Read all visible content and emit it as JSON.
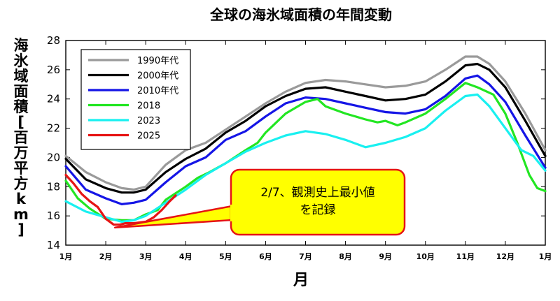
{
  "chart_data": {
    "type": "line",
    "title": "全球の海氷域面積の年間変動",
    "xlabel": "月",
    "ylabel": "海氷域面積[百万平方km]",
    "ylim": [
      14,
      28
    ],
    "yticks": [
      "14",
      "16",
      "18",
      "20",
      "22",
      "24",
      "26",
      "28"
    ],
    "xlim": [
      1,
      13
    ],
    "xtick_labels": [
      "1月",
      "2月",
      "3月",
      "4月",
      "5月",
      "6月",
      "7月",
      "8月",
      "9月",
      "10月",
      "11月",
      "12月",
      "1月"
    ],
    "legend_position": "top-left",
    "series": [
      {
        "name": "1990年代",
        "color": "#9a9a9a",
        "points": [
          [
            1,
            20.1
          ],
          [
            1.5,
            19.0
          ],
          [
            2,
            18.3
          ],
          [
            2.4,
            17.9
          ],
          [
            2.7,
            17.8
          ],
          [
            3,
            18.0
          ],
          [
            3.5,
            19.5
          ],
          [
            4,
            20.5
          ],
          [
            4.5,
            21.0
          ],
          [
            5,
            21.9
          ],
          [
            5.5,
            22.8
          ],
          [
            6,
            23.7
          ],
          [
            6.5,
            24.5
          ],
          [
            7,
            25.1
          ],
          [
            7.5,
            25.3
          ],
          [
            8,
            25.2
          ],
          [
            8.5,
            25.0
          ],
          [
            9,
            24.8
          ],
          [
            9.5,
            24.9
          ],
          [
            10,
            25.2
          ],
          [
            10.5,
            26.0
          ],
          [
            11,
            26.9
          ],
          [
            11.3,
            26.9
          ],
          [
            11.6,
            26.4
          ],
          [
            12,
            25.2
          ],
          [
            12.5,
            23.0
          ],
          [
            13,
            20.5
          ]
        ]
      },
      {
        "name": "2000年代",
        "color": "#000000",
        "points": [
          [
            1,
            19.9
          ],
          [
            1.5,
            18.5
          ],
          [
            2,
            17.9
          ],
          [
            2.4,
            17.6
          ],
          [
            2.7,
            17.6
          ],
          [
            3,
            17.8
          ],
          [
            3.5,
            19.0
          ],
          [
            4,
            19.9
          ],
          [
            4.5,
            20.6
          ],
          [
            5,
            21.7
          ],
          [
            5.5,
            22.5
          ],
          [
            6,
            23.5
          ],
          [
            6.5,
            24.2
          ],
          [
            7,
            24.7
          ],
          [
            7.5,
            24.8
          ],
          [
            8,
            24.5
          ],
          [
            8.5,
            24.2
          ],
          [
            9,
            23.9
          ],
          [
            9.5,
            24.0
          ],
          [
            10,
            24.3
          ],
          [
            10.5,
            25.2
          ],
          [
            11,
            26.3
          ],
          [
            11.3,
            26.4
          ],
          [
            11.6,
            26.0
          ],
          [
            12,
            24.8
          ],
          [
            12.5,
            22.5
          ],
          [
            13,
            20.1
          ]
        ]
      },
      {
        "name": "2010年代",
        "color": "#1515e6",
        "points": [
          [
            1,
            19.4
          ],
          [
            1.5,
            17.8
          ],
          [
            2,
            17.2
          ],
          [
            2.4,
            16.8
          ],
          [
            2.7,
            16.9
          ],
          [
            3,
            17.1
          ],
          [
            3.5,
            18.3
          ],
          [
            4,
            19.4
          ],
          [
            4.5,
            20.0
          ],
          [
            5,
            21.2
          ],
          [
            5.5,
            21.8
          ],
          [
            6,
            22.8
          ],
          [
            6.5,
            23.7
          ],
          [
            7,
            24.1
          ],
          [
            7.5,
            24.0
          ],
          [
            8,
            23.7
          ],
          [
            8.5,
            23.4
          ],
          [
            9,
            23.1
          ],
          [
            9.5,
            23.0
          ],
          [
            10,
            23.3
          ],
          [
            10.5,
            24.2
          ],
          [
            11,
            25.4
          ],
          [
            11.3,
            25.6
          ],
          [
            11.6,
            25.0
          ],
          [
            12,
            23.8
          ],
          [
            12.5,
            21.5
          ],
          [
            13,
            19.3
          ]
        ]
      },
      {
        "name": "2018",
        "color": "#22e622",
        "points": [
          [
            1,
            18.4
          ],
          [
            1.3,
            17.2
          ],
          [
            1.6,
            16.5
          ],
          [
            2,
            15.8
          ],
          [
            2.4,
            15.7
          ],
          [
            2.7,
            15.7
          ],
          [
            3,
            16.1
          ],
          [
            3.3,
            16.4
          ],
          [
            3.5,
            17.1
          ],
          [
            4,
            18.0
          ],
          [
            4.3,
            18.6
          ],
          [
            4.6,
            19.0
          ],
          [
            5,
            19.6
          ],
          [
            5.5,
            20.5
          ],
          [
            5.8,
            21.0
          ],
          [
            6,
            21.7
          ],
          [
            6.5,
            23.0
          ],
          [
            7,
            23.8
          ],
          [
            7.3,
            24.0
          ],
          [
            7.5,
            23.5
          ],
          [
            8,
            23.0
          ],
          [
            8.5,
            22.6
          ],
          [
            8.8,
            22.4
          ],
          [
            9,
            22.5
          ],
          [
            9.3,
            22.2
          ],
          [
            9.5,
            22.4
          ],
          [
            10,
            23.0
          ],
          [
            10.5,
            24.0
          ],
          [
            11,
            25.1
          ],
          [
            11.3,
            24.8
          ],
          [
            11.7,
            24.3
          ],
          [
            12,
            23.0
          ],
          [
            12.3,
            21.0
          ],
          [
            12.6,
            18.8
          ],
          [
            12.8,
            17.9
          ],
          [
            13,
            17.7
          ]
        ]
      },
      {
        "name": "2023",
        "color": "#19f0f0",
        "points": [
          [
            1,
            17.0
          ],
          [
            1.5,
            16.3
          ],
          [
            2,
            15.9
          ],
          [
            2.4,
            15.6
          ],
          [
            2.7,
            15.7
          ],
          [
            3,
            16.0
          ],
          [
            3.5,
            16.9
          ],
          [
            4,
            17.8
          ],
          [
            4.5,
            18.8
          ],
          [
            5,
            19.6
          ],
          [
            5.5,
            20.4
          ],
          [
            6,
            21.0
          ],
          [
            6.5,
            21.5
          ],
          [
            7,
            21.8
          ],
          [
            7.5,
            21.6
          ],
          [
            8,
            21.2
          ],
          [
            8.5,
            20.7
          ],
          [
            9,
            21.0
          ],
          [
            9.5,
            21.4
          ],
          [
            10,
            22.0
          ],
          [
            10.5,
            23.2
          ],
          [
            11,
            24.2
          ],
          [
            11.3,
            24.3
          ],
          [
            11.6,
            23.5
          ],
          [
            12,
            22.0
          ],
          [
            12.4,
            20.5
          ],
          [
            12.7,
            20.1
          ],
          [
            13,
            19.1
          ]
        ]
      },
      {
        "name": "2025",
        "color": "#e61414",
        "points": [
          [
            1,
            18.8
          ],
          [
            1.2,
            18.2
          ],
          [
            1.4,
            17.5
          ],
          [
            1.6,
            17.0
          ],
          [
            1.8,
            16.6
          ],
          [
            2,
            15.8
          ],
          [
            2.2,
            15.4
          ],
          [
            2.35,
            15.4
          ],
          [
            2.5,
            15.5
          ],
          [
            2.7,
            15.5
          ],
          [
            3,
            15.6
          ],
          [
            3.2,
            15.9
          ],
          [
            3.4,
            16.4
          ],
          [
            3.6,
            17.0
          ],
          [
            3.75,
            17.4
          ]
        ]
      }
    ],
    "annotation": {
      "text": "2/7、観測史上最小値\nを記録",
      "target": [
        2.23,
        15.2
      ],
      "fill": "#ffff00",
      "border": "#e61414"
    }
  }
}
